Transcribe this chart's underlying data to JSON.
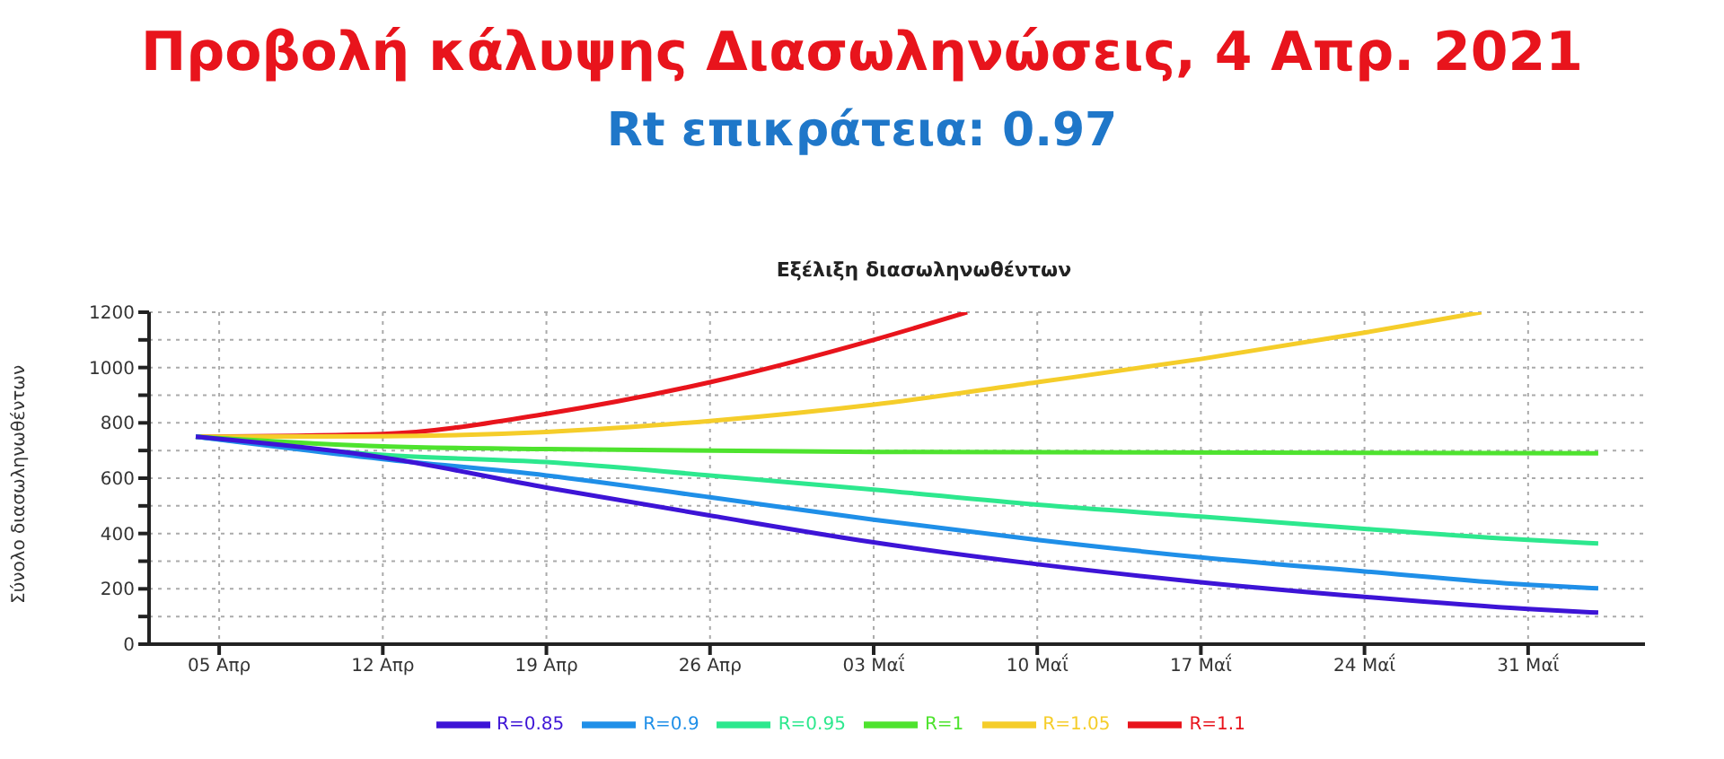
{
  "chart_data": {
    "type": "line",
    "title": "Προβολή κάλυψης Διασωληνώσεις, 4 Απρ. 2021",
    "subtitle": "Rt επικράτεια: 0.97",
    "annotations": [
      "Εξέλιξη διασωληνωθέντων"
    ],
    "ylabel": "Σύνολο διασωληνωθέντων",
    "xlim": [
      "2021-04-02",
      "2021-06-05"
    ],
    "xticks": [
      {
        "value": "2021-04-05",
        "label": "05 Απρ"
      },
      {
        "value": "2021-04-12",
        "label": "12 Απρ"
      },
      {
        "value": "2021-04-19",
        "label": "19 Απρ"
      },
      {
        "value": "2021-04-26",
        "label": "26 Απρ"
      },
      {
        "value": "2021-05-03",
        "label": "03 Μαΐ"
      },
      {
        "value": "2021-05-10",
        "label": "10 Μαΐ"
      },
      {
        "value": "2021-05-17",
        "label": "17 Μαΐ"
      },
      {
        "value": "2021-05-24",
        "label": "24 Μαΐ"
      },
      {
        "value": "2021-05-31",
        "label": "31 Μαΐ"
      }
    ],
    "ylim": [
      0,
      1200
    ],
    "yticks": [
      0,
      {
        "value": 100,
        "label": null
      },
      200,
      {
        "value": 300,
        "label": null
      },
      400,
      {
        "value": 500,
        "label": null
      },
      600,
      {
        "value": 700,
        "label": null
      },
      800,
      {
        "value": 900,
        "label": null
      },
      1000,
      {
        "value": 1100,
        "label": null
      },
      1200
    ],
    "grid": true,
    "legend": "bottom",
    "marker": "none",
    "line_style": "solid",
    "series": [
      {
        "name": "R=1.1",
        "color": "#e8141c",
        "x": [
          "2021-04-04",
          "2021-04-12",
          "2021-04-19",
          "2021-04-26",
          "2021-05-03",
          "2021-05-07"
        ],
        "values": [
          750,
          760,
          833,
          947,
          1100,
          1200
        ]
      },
      {
        "name": "R=1.05",
        "color": "#f5cd2a",
        "x": [
          "2021-04-04",
          "2021-04-12",
          "2021-04-19",
          "2021-04-26",
          "2021-05-03",
          "2021-05-10",
          "2021-05-17",
          "2021-05-24",
          "2021-05-29"
        ],
        "values": [
          750,
          752,
          767,
          807,
          866,
          947,
          1031,
          1126,
          1200
        ]
      },
      {
        "name": "R=1",
        "color": "#4ee32e",
        "x": [
          "2021-04-04",
          "2021-04-12",
          "2021-04-19",
          "2021-05-03",
          "2021-06-03"
        ],
        "values": [
          750,
          715,
          705,
          695,
          690
        ]
      },
      {
        "name": "R=0.95",
        "color": "#2de88e",
        "x": [
          "2021-04-04",
          "2021-04-12",
          "2021-04-19",
          "2021-04-26",
          "2021-05-03",
          "2021-05-10",
          "2021-05-17",
          "2021-05-24",
          "2021-05-31",
          "2021-06-03"
        ],
        "values": [
          750,
          684,
          658,
          610,
          559,
          504,
          461,
          417,
          377,
          364
        ]
      },
      {
        "name": "R=0.9",
        "color": "#1f8fe8",
        "x": [
          "2021-04-04",
          "2021-04-12",
          "2021-04-19",
          "2021-04-26",
          "2021-05-03",
          "2021-05-10",
          "2021-05-17",
          "2021-05-24",
          "2021-05-31",
          "2021-06-03"
        ],
        "values": [
          750,
          669,
          610,
          531,
          450,
          377,
          314,
          263,
          215,
          202
        ]
      },
      {
        "name": "R=0.85",
        "color": "#3d14d6",
        "x": [
          "2021-04-04",
          "2021-04-12",
          "2021-04-19",
          "2021-04-26",
          "2021-05-03",
          "2021-05-10",
          "2021-05-17",
          "2021-05-24",
          "2021-05-31",
          "2021-06-03"
        ],
        "values": [
          750,
          675,
          566,
          465,
          368,
          289,
          224,
          171,
          127,
          114
        ]
      }
    ]
  }
}
